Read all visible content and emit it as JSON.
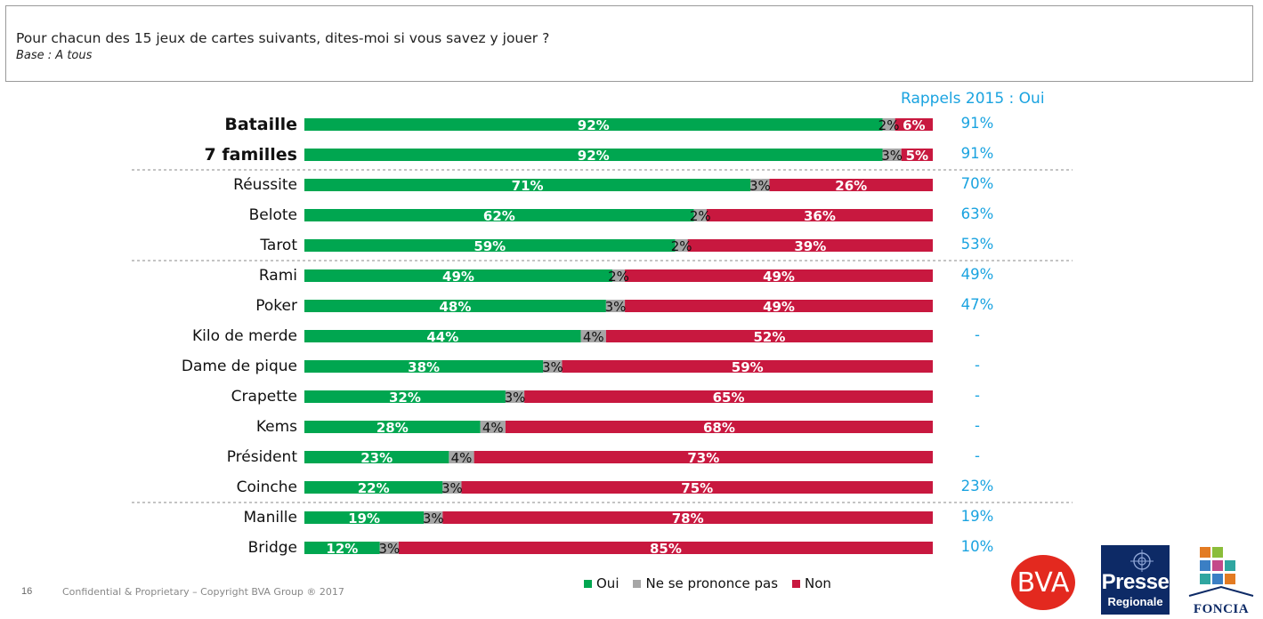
{
  "question": "Pour chacun des 15 jeux de cartes suivants, dites-moi si vous savez y jouer ?",
  "base": "Base : A tous",
  "recall_header": "Rappels 2015 : Oui",
  "colors": {
    "oui": "#00a650",
    "nsp": "#a6a6a6",
    "non": "#c8183f",
    "recall": "#1aa3e0"
  },
  "chart_data": {
    "type": "bar",
    "orientation": "horizontal",
    "stacked": true,
    "normalized_to": 100,
    "categories": [
      "Bataille",
      "7 familles",
      "Réussite",
      "Belote",
      "Tarot",
      "Rami",
      "Poker",
      "Kilo de merde",
      "Dame de pique",
      "Crapette",
      "Kems",
      "Président",
      "Coinche",
      "Manille",
      "Bridge"
    ],
    "bold_categories": [
      "Bataille",
      "7 familles"
    ],
    "separators_after": [
      "7 familles",
      "Tarot",
      "Coinche"
    ],
    "series": [
      {
        "name": "Oui",
        "color": "#00a650",
        "values": [
          92,
          92,
          71,
          62,
          59,
          49,
          48,
          44,
          38,
          32,
          28,
          23,
          22,
          19,
          12
        ],
        "labels": [
          "92%",
          "92%",
          "71%",
          "62%",
          "59%",
          "49%",
          "48%",
          "44%",
          "38%",
          "32%",
          "28%",
          "23%",
          "22%",
          "19%",
          "12%"
        ]
      },
      {
        "name": "Ne se prononce pas",
        "color": "#a6a6a6",
        "values": [
          2,
          3,
          3,
          2,
          2,
          2,
          3,
          4,
          3,
          3,
          4,
          4,
          3,
          3,
          3
        ],
        "labels": [
          "2%",
          "3%",
          "3%",
          "2%",
          "2%",
          "2%",
          "3%",
          "4%",
          "3%",
          "3%",
          "4%",
          "4%",
          "3%",
          "3%",
          "3%"
        ]
      },
      {
        "name": "Non",
        "color": "#c8183f",
        "values": [
          6,
          5,
          26,
          36,
          39,
          49,
          49,
          52,
          59,
          65,
          68,
          73,
          75,
          78,
          85
        ],
        "labels": [
          "6%",
          "5%",
          "26%",
          "36%",
          "39%",
          "49%",
          "49%",
          "52%",
          "59%",
          "65%",
          "68%",
          "73%",
          "75%",
          "78%",
          "85%"
        ]
      }
    ],
    "recall_2015": [
      "91%",
      "91%",
      "70%",
      "63%",
      "53%",
      "49%",
      "47%",
      "-",
      "-",
      "-",
      "-",
      "-",
      "23%",
      "19%",
      "10%"
    ],
    "legend": [
      "Oui",
      "Ne se prononce pas",
      "Non"
    ],
    "legend_position": "bottom"
  },
  "footer": {
    "page": "16",
    "copyright": "Confidential & Proprietary – Copyright BVA Group ®  2017"
  },
  "logos": {
    "bva": "BVA",
    "presse_line1": "Presse",
    "presse_line2": "Regionale",
    "foncia": "FONCIA"
  }
}
